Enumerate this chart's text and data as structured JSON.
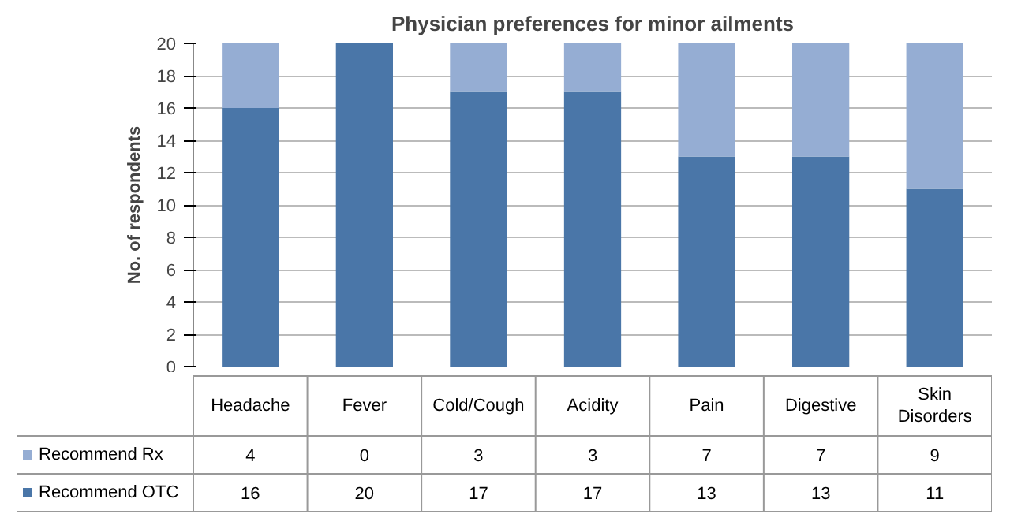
{
  "chart_data": {
    "type": "bar",
    "title": "Physician preferences for minor ailments",
    "ylabel": "No. of respondents",
    "categories": [
      "Headache",
      "Fever",
      "Cold/Cough",
      "Acidity",
      "Pain",
      "Digestive",
      "Skin Disorders"
    ],
    "series": [
      {
        "name": "Recommend OTC",
        "color": "#4a76a8",
        "values": [
          16,
          20,
          17,
          17,
          13,
          13,
          11
        ]
      },
      {
        "name": "Recommend Rx",
        "color": "#95add3",
        "values": [
          4,
          0,
          3,
          3,
          7,
          7,
          9
        ]
      }
    ],
    "stacked": true,
    "ylim": [
      0,
      20
    ],
    "yticks": [
      0,
      2,
      4,
      6,
      8,
      10,
      12,
      14,
      16,
      18,
      20
    ],
    "grid": "y",
    "data_labels": true,
    "legend": "bottom left"
  }
}
